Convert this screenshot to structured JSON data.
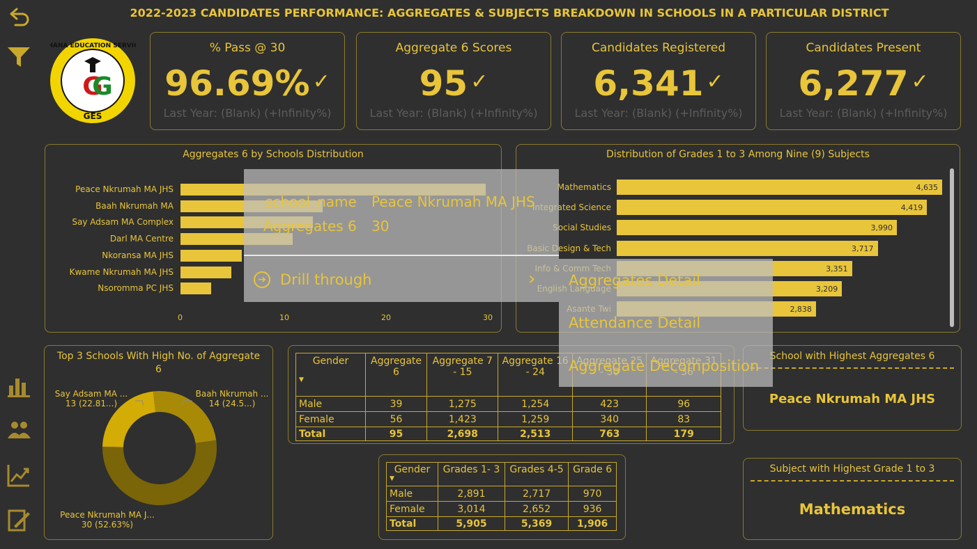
{
  "title": "2022-2023 CANDIDATES PERFORMANCE: AGGREGATES & SUBJECTS BREAKDOWN IN SCHOOLS IN A PARTICULAR DISTRICT",
  "logo": {
    "top_text": "GHANA EDUCATION SERVICE",
    "center_text": "GG",
    "bottom_text": "GES"
  },
  "kpis": [
    {
      "title": "% Pass @ 30",
      "value": "96.69%",
      "sub": "Last Year: (Blank) (+Infinity%)"
    },
    {
      "title": "Aggregate 6 Scores",
      "value": "95",
      "sub": "Last Year: (Blank) (+Infinity%)"
    },
    {
      "title": "Candidates Registered",
      "value": "6,341",
      "sub": "Last Year: (Blank) (+Infinity%)"
    },
    {
      "title": "Candidates Present",
      "value": "6,277",
      "sub": "Last Year: (Blank) (+Infinity%)"
    }
  ],
  "agg6_chart": {
    "title": "Aggregates 6 by Schools Distribution",
    "categories": [
      "Peace Nkrumah MA JHS",
      "Baah Nkrumah MA",
      "Say Adsam MA Complex",
      "Darl MA Centre",
      "Nkoransa MA JHS",
      "Kwame Nkrumah MA JHS",
      "Nsoromma PC JHS"
    ],
    "values": [
      30,
      14,
      13,
      11,
      6,
      5,
      3
    ],
    "ticks": [
      "0",
      "10",
      "20",
      "30"
    ],
    "xlim": [
      0,
      30
    ]
  },
  "grades_chart": {
    "title": "Distribution of Grades  1 to 3 Among Nine (9) Subjects",
    "categories": [
      "Mathematics",
      "Integrated Science",
      "Social Studies",
      "Basic Design & Tech",
      "Info & Comm Tech",
      "English Language",
      "Asante Twi"
    ],
    "values": [
      4635,
      4419,
      3990,
      3717,
      3351,
      3209,
      2838
    ],
    "labels": [
      "4,635",
      "4,419",
      "3,990",
      "3,717",
      "3,351",
      "3,209",
      "2,838"
    ],
    "xlim": [
      0,
      4635
    ]
  },
  "donut": {
    "title": "Top 3 Schools With High No. of Aggregate 6",
    "slices": [
      {
        "name": "Peace Nkrumah MA J...",
        "value": 30,
        "label": "30 (52.63%)",
        "color": "#7a6508"
      },
      {
        "name": "Say Adsam MA ...",
        "value": 13,
        "label": "13 (22.81...)",
        "color": "#d4ac06"
      },
      {
        "name": "Baah Nkrumah ...",
        "value": 14,
        "label": "14 (24.5...)",
        "color": "#a88a07"
      }
    ]
  },
  "agg_table": {
    "headers": [
      "Gender",
      "Aggregate 6",
      "Aggregate 7 - 15",
      "Aggregate 16 - 24",
      "Aggregate 25 - 30",
      "Aggregate 31 - 36"
    ],
    "rows": [
      [
        "Male",
        "39",
        "1,275",
        "1,254",
        "423",
        "96"
      ],
      [
        "Female",
        "56",
        "1,423",
        "1,259",
        "340",
        "83"
      ],
      [
        "Total",
        "95",
        "2,698",
        "2,513",
        "763",
        "179"
      ]
    ]
  },
  "grade_table": {
    "headers": [
      "Gender",
      "Grades 1- 3",
      "Grades 4-5",
      "Grade 6"
    ],
    "rows": [
      [
        "Male",
        "2,891",
        "2,717",
        "970"
      ],
      [
        "Female",
        "3,014",
        "2,652",
        "936"
      ],
      [
        "Total",
        "5,905",
        "5,369",
        "1,906"
      ]
    ]
  },
  "highest_agg": {
    "title": "School with Highest Aggregates 6",
    "value": "Peace Nkrumah MA JHS"
  },
  "highest_subject": {
    "title": "Subject with Highest Grade 1 to 3",
    "value": "Mathematics"
  },
  "tooltip": {
    "key1": "school_name",
    "val1": "Peace Nkrumah MA JHS",
    "key2": "Aggregates 6",
    "val2": "30",
    "drill": "Drill through"
  },
  "drill_menu": [
    "Aggregates Detail",
    "Attendance Detail",
    "Aggregate Decomposition"
  ]
}
